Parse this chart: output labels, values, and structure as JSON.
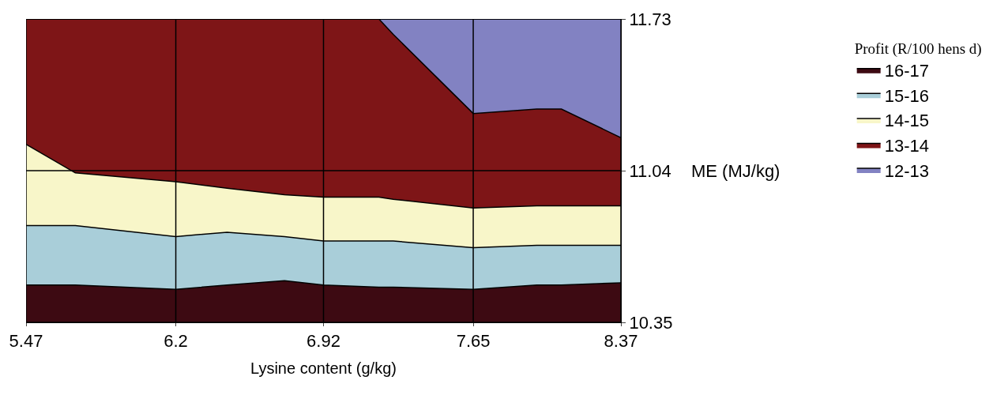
{
  "chart_data": {
    "type": "area",
    "xlabel": "Lysine content (g/kg)",
    "ylabel": "ME (MJ/kg)",
    "legend_title": "Profit (R/100 hens d)",
    "x": [
      5.47,
      5.71,
      6.2,
      6.45,
      6.73,
      6.92,
      7.19,
      7.26,
      7.65,
      7.96,
      8.08,
      8.37
    ],
    "series": [
      {
        "name": "16-17",
        "color": "#3d0a12",
        "values": [
          10.52,
          10.52,
          10.5,
          10.52,
          10.54,
          10.52,
          10.51,
          10.51,
          10.5,
          10.52,
          10.52,
          10.53
        ]
      },
      {
        "name": "15-16",
        "color": "#a9ced9",
        "values": [
          10.79,
          10.79,
          10.74,
          10.76,
          10.74,
          10.72,
          10.72,
          10.72,
          10.69,
          10.7,
          10.7,
          10.7
        ]
      },
      {
        "name": "14-15",
        "color": "#f8f6c9",
        "values": [
          11.16,
          11.03,
          10.99,
          10.96,
          10.93,
          10.92,
          10.92,
          10.91,
          10.87,
          10.88,
          10.88,
          10.88
        ]
      },
      {
        "name": "13-14",
        "color": "#7e1517",
        "values": [
          11.73,
          11.73,
          11.73,
          11.73,
          11.73,
          11.73,
          11.73,
          11.66,
          11.3,
          11.32,
          11.32,
          11.19
        ]
      },
      {
        "name": "12-13",
        "color": "#8282c2",
        "values": [
          11.73,
          11.73,
          11.73,
          11.73,
          11.73,
          11.73,
          11.73,
          11.73,
          11.73,
          11.73,
          11.73,
          11.73
        ]
      }
    ],
    "xlim": [
      5.47,
      8.37
    ],
    "xticks": [
      5.47,
      6.2,
      6.92,
      7.65,
      8.37
    ],
    "ylim": [
      10.35,
      11.73
    ],
    "yticks": [
      10.35,
      11.04,
      11.73
    ],
    "grid": true,
    "legend": "right"
  }
}
